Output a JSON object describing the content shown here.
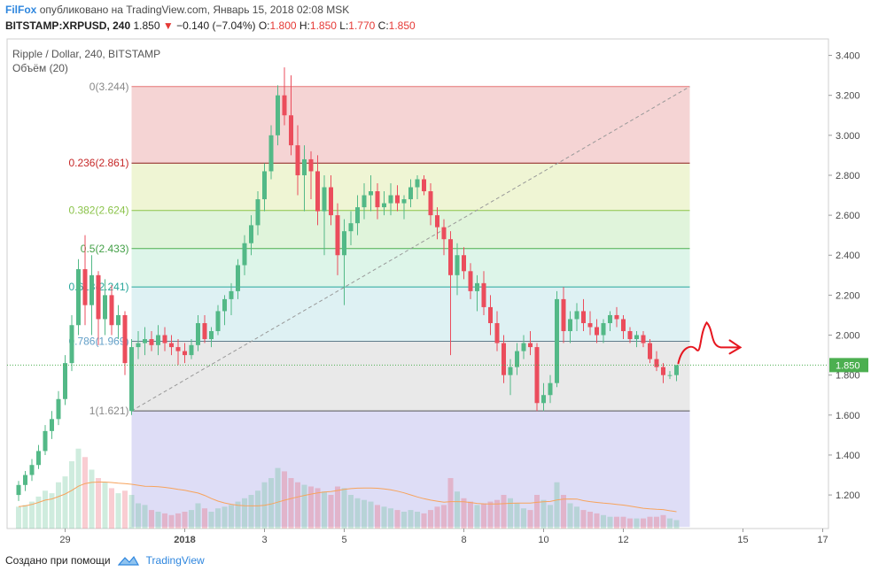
{
  "header": {
    "brand": "FilFox",
    "published": "опубликовано на TradingView.com, Январь 15, 2018 02:08 MSK",
    "symbol": "BITSTAMP:XRPUSD, 240",
    "last": "1.850",
    "change": "−0.140 (−7.04%)",
    "o_label": "O:",
    "o_value": "1.800",
    "h_label": "H:",
    "h_value": "1.850",
    "l_label": "L:",
    "l_value": "1.770",
    "c_label": "C:",
    "c_value": "1.850"
  },
  "legend": {
    "series_title": "Ripple / Dollar, 240, BITSTAMP",
    "volume_title": "Объём (20)"
  },
  "footer": {
    "created_with": "Создано при помощи",
    "brand": "TradingView"
  },
  "colors": {
    "up": "#53b987",
    "down": "#eb4d5c",
    "ma": "#f7a35c",
    "annotation": "#e6161f",
    "price_line": "#4caf50",
    "price_tag": "#4caf50"
  },
  "chart_data": {
    "type": "candlestick",
    "ylim": [
      1.04,
      3.44
    ],
    "y_ticks": [
      "3.400",
      "3.200",
      "3.000",
      "2.800",
      "2.600",
      "2.400",
      "2.200",
      "2.000",
      "1.800",
      "1.600",
      "1.400",
      "1.200"
    ],
    "x_ticks": [
      {
        "label": "29",
        "i": 7
      },
      {
        "label": "2018",
        "i": 25
      },
      {
        "label": "3",
        "i": 37
      },
      {
        "label": "5",
        "i": 49
      },
      {
        "label": "8",
        "i": 67
      },
      {
        "label": "10",
        "i": 79
      },
      {
        "label": "12",
        "i": 91
      },
      {
        "label": "15",
        "i": 109
      },
      {
        "label": "17",
        "i": 121
      }
    ],
    "current_price": "1.850",
    "fib": {
      "levels": [
        {
          "label": "0(3.244)",
          "price": 3.244,
          "fill": "#f2c6c6",
          "line": "#e57373"
        },
        {
          "label": "0.236(2.861)",
          "price": 2.861,
          "fill": "#e9f2c6",
          "line": "#8b1a1a"
        },
        {
          "label": "0.382(2.624)",
          "price": 2.624,
          "fill": "#d5f0cf",
          "line": "#8bc34a"
        },
        {
          "label": "0.5(2.433)",
          "price": 2.433,
          "fill": "#d2f2e2",
          "line": "#4caf50"
        },
        {
          "label": "0.618(2.241)",
          "price": 2.241,
          "fill": "#d3ecef",
          "line": "#26a69a"
        },
        {
          "label": "0.786(1.969)",
          "price": 1.969,
          "fill": "#e2e2e2",
          "line": "#607d8b"
        },
        {
          "label": "1(1.621)",
          "price": 1.621,
          "fill": "#d3d1f3",
          "line": "#555555"
        }
      ],
      "label_colors": [
        "#888888",
        "#c62828",
        "#8bc34a",
        "#43a047",
        "#26a69a",
        "#64a0c8",
        "#888888"
      ],
      "start_i": 17,
      "end_i": 101,
      "bottom_price": 1.04
    },
    "candles": [
      [
        1.2,
        1.27,
        1.17,
        1.25,
        26
      ],
      [
        1.25,
        1.32,
        1.22,
        1.3,
        28
      ],
      [
        1.3,
        1.38,
        1.27,
        1.35,
        32
      ],
      [
        1.35,
        1.45,
        1.33,
        1.42,
        38
      ],
      [
        1.42,
        1.55,
        1.4,
        1.52,
        45
      ],
      [
        1.52,
        1.62,
        1.48,
        1.58,
        42
      ],
      [
        1.58,
        1.72,
        1.55,
        1.68,
        55
      ],
      [
        1.68,
        1.9,
        1.65,
        1.86,
        62
      ],
      [
        1.86,
        2.1,
        1.82,
        2.05,
        80
      ],
      [
        2.05,
        2.38,
        2.0,
        2.33,
        95
      ],
      [
        2.33,
        2.5,
        2.05,
        2.15,
        85
      ],
      [
        2.15,
        2.4,
        2.0,
        2.3,
        70
      ],
      [
        2.3,
        2.32,
        1.95,
        2.08,
        60
      ],
      [
        2.08,
        2.28,
        2.0,
        2.2,
        55
      ],
      [
        2.2,
        2.25,
        2.0,
        2.05,
        48
      ],
      [
        2.05,
        2.15,
        1.98,
        2.1,
        42
      ],
      [
        2.1,
        2.12,
        1.8,
        1.86,
        45
      ],
      [
        1.62,
        1.98,
        1.6,
        1.94,
        40
      ],
      [
        1.94,
        2.02,
        1.88,
        1.96,
        30
      ],
      [
        1.96,
        2.04,
        1.9,
        1.98,
        28
      ],
      [
        1.98,
        2.02,
        1.92,
        1.95,
        22
      ],
      [
        1.95,
        2.05,
        1.9,
        2.0,
        20
      ],
      [
        2.0,
        2.04,
        1.92,
        1.96,
        18
      ],
      [
        1.96,
        2.0,
        1.9,
        1.94,
        16
      ],
      [
        1.94,
        1.98,
        1.85,
        1.92,
        18
      ],
      [
        1.92,
        1.96,
        1.86,
        1.9,
        20
      ],
      [
        1.9,
        1.98,
        1.88,
        1.95,
        22
      ],
      [
        1.95,
        2.1,
        1.92,
        2.06,
        30
      ],
      [
        2.06,
        2.1,
        1.96,
        1.98,
        24
      ],
      [
        1.98,
        2.04,
        1.94,
        2.02,
        20
      ],
      [
        2.02,
        2.15,
        2.0,
        2.12,
        24
      ],
      [
        2.12,
        2.2,
        2.05,
        2.18,
        26
      ],
      [
        2.18,
        2.26,
        2.1,
        2.22,
        28
      ],
      [
        2.22,
        2.38,
        2.18,
        2.35,
        32
      ],
      [
        2.35,
        2.5,
        2.3,
        2.46,
        36
      ],
      [
        2.46,
        2.6,
        2.4,
        2.55,
        40
      ],
      [
        2.55,
        2.72,
        2.5,
        2.68,
        45
      ],
      [
        2.68,
        2.86,
        2.62,
        2.82,
        55
      ],
      [
        2.82,
        3.05,
        2.78,
        3.0,
        60
      ],
      [
        3.0,
        3.25,
        2.95,
        3.2,
        72
      ],
      [
        3.2,
        3.34,
        3.05,
        3.1,
        68
      ],
      [
        3.1,
        3.3,
        2.9,
        2.95,
        60
      ],
      [
        2.95,
        3.05,
        2.7,
        2.8,
        55
      ],
      [
        2.8,
        2.95,
        2.62,
        2.88,
        52
      ],
      [
        2.88,
        2.92,
        2.68,
        2.82,
        50
      ],
      [
        2.82,
        2.9,
        2.55,
        2.62,
        48
      ],
      [
        2.62,
        2.8,
        2.4,
        2.74,
        44
      ],
      [
        2.74,
        2.8,
        2.55,
        2.6,
        40
      ],
      [
        2.6,
        2.66,
        2.3,
        2.4,
        50
      ],
      [
        2.4,
        2.58,
        2.15,
        2.52,
        48
      ],
      [
        2.52,
        2.62,
        2.45,
        2.56,
        40
      ],
      [
        2.56,
        2.7,
        2.5,
        2.64,
        36
      ],
      [
        2.64,
        2.76,
        2.58,
        2.7,
        34
      ],
      [
        2.7,
        2.8,
        2.62,
        2.72,
        32
      ],
      [
        2.72,
        2.76,
        2.58,
        2.64,
        28
      ],
      [
        2.64,
        2.72,
        2.6,
        2.66,
        26
      ],
      [
        2.66,
        2.76,
        2.6,
        2.7,
        24
      ],
      [
        2.7,
        2.75,
        2.62,
        2.66,
        22
      ],
      [
        2.66,
        2.7,
        2.58,
        2.68,
        20
      ],
      [
        2.68,
        2.78,
        2.64,
        2.74,
        22
      ],
      [
        2.74,
        2.8,
        2.68,
        2.78,
        20
      ],
      [
        2.78,
        2.8,
        2.7,
        2.72,
        18
      ],
      [
        2.72,
        2.76,
        2.55,
        2.6,
        22
      ],
      [
        2.6,
        2.64,
        2.48,
        2.54,
        26
      ],
      [
        2.54,
        2.58,
        2.4,
        2.48,
        28
      ],
      [
        2.48,
        2.52,
        1.9,
        2.3,
        60
      ],
      [
        2.3,
        2.46,
        2.2,
        2.4,
        44
      ],
      [
        2.4,
        2.44,
        2.28,
        2.32,
        36
      ],
      [
        2.32,
        2.36,
        2.18,
        2.22,
        32
      ],
      [
        2.22,
        2.3,
        2.12,
        2.26,
        28
      ],
      [
        2.26,
        2.32,
        2.1,
        2.14,
        30
      ],
      [
        2.14,
        2.2,
        2.0,
        2.06,
        32
      ],
      [
        2.06,
        2.12,
        1.92,
        1.96,
        34
      ],
      [
        1.96,
        2.0,
        1.76,
        1.8,
        40
      ],
      [
        1.8,
        1.88,
        1.7,
        1.84,
        36
      ],
      [
        1.84,
        1.96,
        1.8,
        1.92,
        30
      ],
      [
        1.92,
        2.0,
        1.88,
        1.96,
        24
      ],
      [
        1.96,
        2.02,
        1.9,
        1.94,
        22
      ],
      [
        1.94,
        1.96,
        1.62,
        1.66,
        40
      ],
      [
        1.66,
        1.76,
        1.62,
        1.7,
        34
      ],
      [
        1.7,
        1.8,
        1.66,
        1.76,
        28
      ],
      [
        1.76,
        2.22,
        1.74,
        2.18,
        55
      ],
      [
        2.18,
        2.24,
        1.96,
        2.02,
        40
      ],
      [
        2.02,
        2.12,
        1.96,
        2.08,
        30
      ],
      [
        2.08,
        2.16,
        2.02,
        2.12,
        26
      ],
      [
        2.12,
        2.18,
        2.02,
        2.06,
        22
      ],
      [
        2.06,
        2.12,
        2.0,
        2.04,
        20
      ],
      [
        2.04,
        2.08,
        1.96,
        2.0,
        18
      ],
      [
        2.0,
        2.08,
        1.96,
        2.06,
        16
      ],
      [
        2.06,
        2.12,
        2.02,
        2.1,
        14
      ],
      [
        2.1,
        2.14,
        2.04,
        2.08,
        14
      ],
      [
        2.08,
        2.1,
        1.98,
        2.02,
        14
      ],
      [
        2.02,
        2.04,
        1.96,
        1.98,
        12
      ],
      [
        1.98,
        2.02,
        1.94,
        2.0,
        12
      ],
      [
        2.0,
        2.02,
        1.94,
        1.96,
        12
      ],
      [
        1.96,
        1.98,
        1.86,
        1.88,
        14
      ],
      [
        1.88,
        1.92,
        1.82,
        1.84,
        14
      ],
      [
        1.84,
        1.86,
        1.76,
        1.8,
        16
      ],
      [
        1.8,
        1.82,
        1.78,
        1.8,
        12
      ],
      [
        1.8,
        1.85,
        1.77,
        1.85,
        10
      ]
    ],
    "annotation": "hand-drawn red arrow indicating price going up then sideways"
  }
}
